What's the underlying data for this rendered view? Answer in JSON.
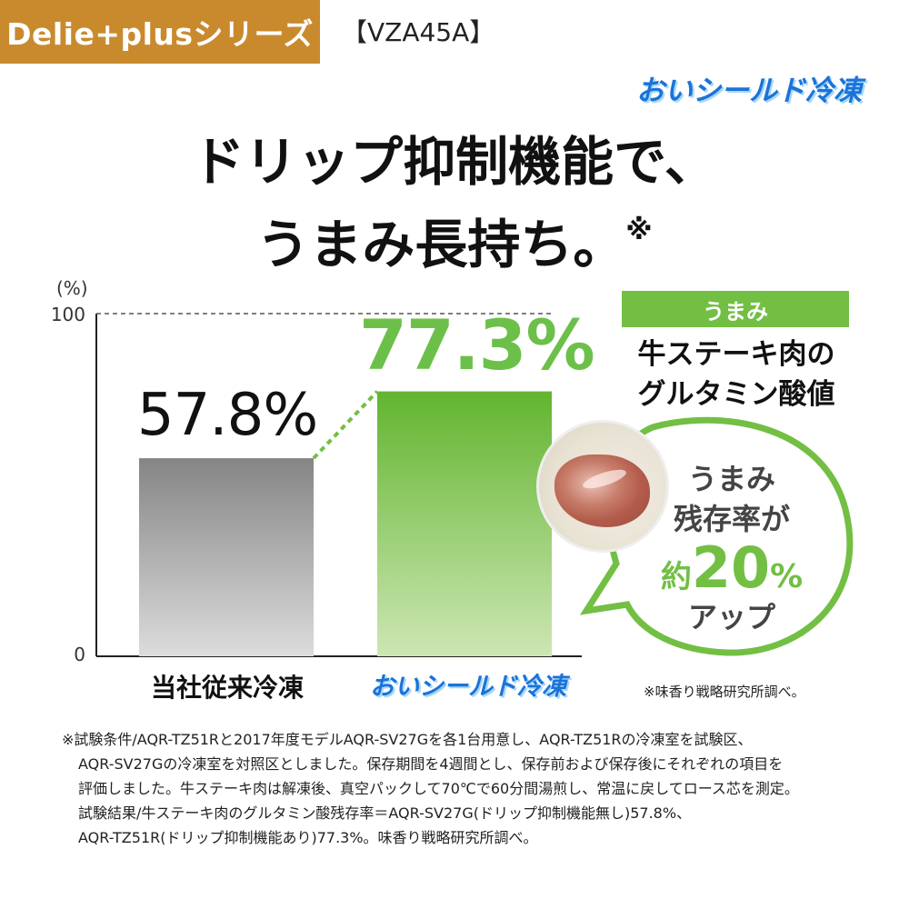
{
  "header": {
    "series_badge": "Delie+plusシリーズ",
    "model": "【VZA45A】",
    "brand_logo": "おいシールド冷凍"
  },
  "headline": {
    "line1": "ドリップ抑制機能で、",
    "line2": "うまみ長持ち。",
    "mark": "※"
  },
  "side_panel": {
    "tag": "うまみ",
    "desc_line1": "牛ステーキ肉の",
    "desc_line2": "グルタミン酸値",
    "bubble_line1": "うまみ",
    "bubble_line2": "残存率が",
    "bubble_prefix": "約",
    "bubble_number": "20",
    "bubble_unit": "%",
    "bubble_line4": "アップ"
  },
  "source_note": "※味香り戦略研究所調べ。",
  "footnote_lines": [
    "※試験条件/AQR-TZ51Rと2017年度モデルAQR-SV27Gを各1台用意し、AQR-TZ51Rの冷凍室を試験区、",
    "AQR-SV27Gの冷凍室を対照区としました。保存期間を4週間とし、保存前および保存後にそれぞれの項目を",
    "評価しました。牛ステーキ肉は解凍後、真空パックして70℃で60分間湯煎し、常温に戻してロース芯を測定。",
    "試験結果/牛ステーキ肉のグルタミン酸残存率＝AQR-SV27G(ドリップ抑制機能無し)57.8%、",
    "AQR-TZ51R(ドリップ抑制機能あり)77.3%。味香り戦略研究所調べ。"
  ],
  "colors": {
    "brand_orange": "#c98a2e",
    "brand_blue": "#1a73d8",
    "accent_green": "#72bf44",
    "bar_gray": "#8c8c8c"
  },
  "chart_data": {
    "type": "bar",
    "unit_label": "(%)",
    "categories": [
      "当社従来冷凍",
      "おいシールド冷凍"
    ],
    "values": [
      57.8,
      77.3
    ],
    "value_labels": [
      "57.8%",
      "77.3%"
    ],
    "ylim": [
      0,
      100
    ],
    "yticks": [
      "0",
      "100"
    ],
    "grid": false
  }
}
